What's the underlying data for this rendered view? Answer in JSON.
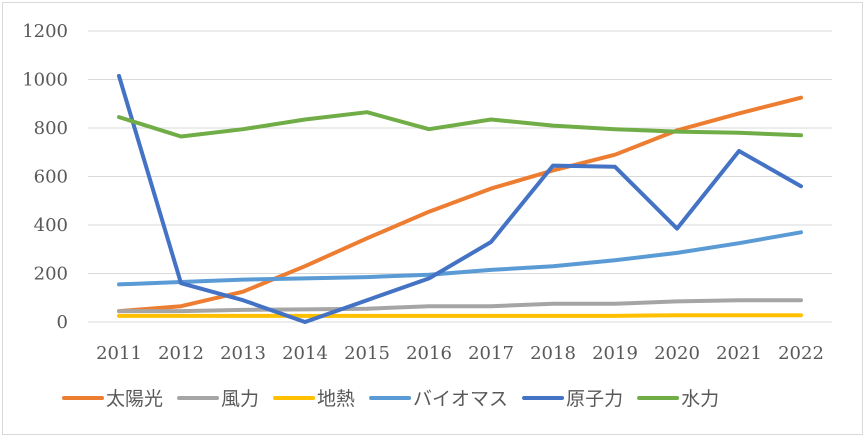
{
  "chart_data": {
    "type": "line",
    "title": "",
    "xlabel": "",
    "ylabel": "",
    "categories": [
      "2011",
      "2012",
      "2013",
      "2014",
      "2015",
      "2016",
      "2017",
      "2018",
      "2019",
      "2020",
      "2021",
      "2022"
    ],
    "ylim": [
      0,
      1200
    ],
    "yticks": [
      0,
      200,
      400,
      600,
      800,
      1000,
      1200
    ],
    "grid": true,
    "legend_position": "bottom",
    "series": [
      {
        "name": "太陽光",
        "color": "#ED7D31",
        "values": [
          45,
          65,
          125,
          230,
          345,
          455,
          550,
          625,
          690,
          790,
          860,
          925
        ]
      },
      {
        "name": "風力",
        "color": "#A5A5A5",
        "values": [
          45,
          45,
          50,
          52,
          55,
          65,
          65,
          75,
          75,
          85,
          90,
          90
        ]
      },
      {
        "name": "地熱",
        "color": "#FFC000",
        "values": [
          25,
          25,
          25,
          25,
          25,
          25,
          25,
          25,
          25,
          28,
          28,
          28
        ]
      },
      {
        "name": "バイオマス",
        "color": "#5B9BD5",
        "values": [
          155,
          165,
          175,
          180,
          185,
          195,
          215,
          230,
          255,
          285,
          325,
          370
        ]
      },
      {
        "name": "原子力",
        "color": "#4472C4",
        "values": [
          1015,
          160,
          90,
          0,
          90,
          180,
          330,
          645,
          640,
          385,
          705,
          560
        ]
      },
      {
        "name": "水力",
        "color": "#70AD47",
        "values": [
          845,
          765,
          795,
          835,
          865,
          795,
          835,
          810,
          795,
          785,
          780,
          770
        ]
      }
    ]
  }
}
